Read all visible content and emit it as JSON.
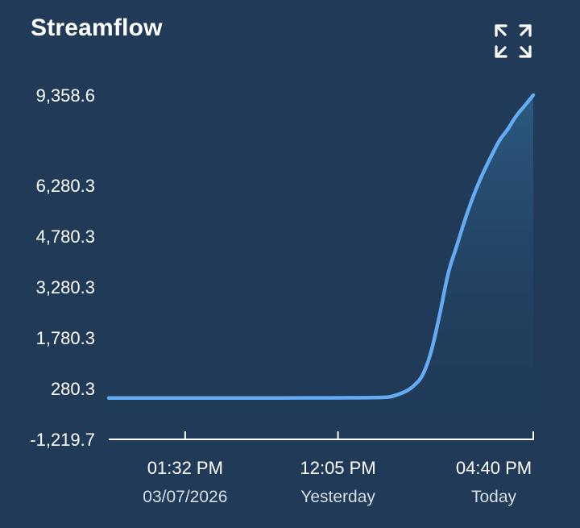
{
  "header": {
    "title": "Streamflow",
    "expand_icon": "expand-arrows-icon"
  },
  "colors": {
    "background": "#203a57",
    "line": "#63abf3",
    "area_top": "#2c5d86",
    "axis": "#ffffff",
    "text": "#ffffff",
    "subtext": "#d7dee6"
  },
  "chart_data": {
    "type": "area",
    "title": "Streamflow",
    "xlabel": "",
    "ylabel": "",
    "grid": false,
    "legend": "none",
    "ylim": [
      -1219.7,
      9358.6
    ],
    "y_ticks": [
      {
        "value": 9358.6,
        "label": "9,358.6"
      },
      {
        "value": 6280.3,
        "label": "6,280.3"
      },
      {
        "value": 4780.3,
        "label": "4,780.3"
      },
      {
        "value": 3280.3,
        "label": "3,280.3"
      },
      {
        "value": 1780.3,
        "label": "1,780.3"
      },
      {
        "value": 280.3,
        "label": "280.3"
      },
      {
        "value": -1219.7,
        "label": "-1,219.7"
      }
    ],
    "xlim": [
      0,
      100
    ],
    "x_ticks": [
      {
        "x": 18,
        "label": "01:32 PM",
        "sublabel": "03/07/2026"
      },
      {
        "x": 54,
        "label": "12:05 PM",
        "sylabel": "",
        "sublabel": "Yesterday"
      },
      {
        "x": 100,
        "label": "04:40 PM",
        "sublabel": "Today"
      }
    ],
    "series": [
      {
        "x": [
          0,
          10,
          20,
          30,
          40,
          50,
          60,
          65,
          67,
          70,
          72,
          74,
          76,
          78,
          80,
          82,
          84,
          86,
          88,
          90,
          92,
          94,
          96,
          98,
          100
        ],
        "y": [
          0,
          0,
          0,
          0,
          0,
          5,
          10,
          20,
          60,
          200,
          380,
          700,
          1400,
          2500,
          3700,
          4500,
          5300,
          6000,
          6650,
          7250,
          7800,
          8200,
          8650,
          9000,
          9358.6
        ]
      }
    ]
  }
}
